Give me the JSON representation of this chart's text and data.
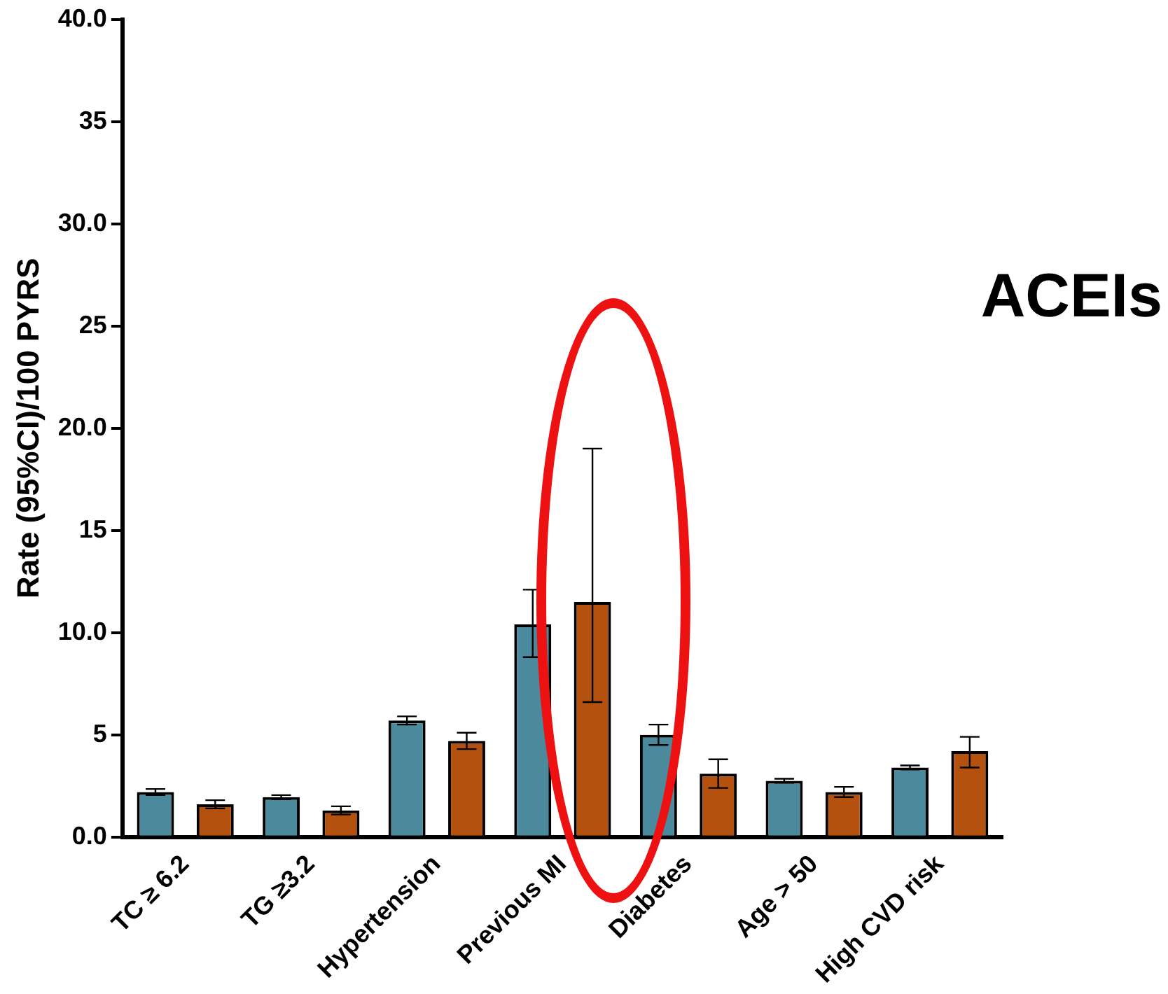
{
  "chart_data": {
    "type": "bar",
    "ylabel": "Rate (95%CI)/100 PYRS",
    "categories": [
      "TC ≥ 6.2",
      "TG ≥3.2",
      "Hypertension",
      "Previous MI",
      "Diabetes",
      "Age > 50",
      "High CVD risk"
    ],
    "series": [
      {
        "color": "#4a8a9c",
        "values": [
          2.2,
          1.95,
          5.7,
          10.4,
          5.0,
          2.75,
          3.4
        ],
        "errors": [
          0.15,
          0.1,
          0.2,
          [
            8.8,
            12.1
          ],
          [
            4.5,
            5.5
          ],
          0.1,
          0.1
        ]
      },
      {
        "color": "#b5510f",
        "values": [
          1.6,
          1.3,
          4.7,
          11.5,
          3.1,
          2.2,
          4.2
        ],
        "errors": [
          0.2,
          0.2,
          0.4,
          [
            6.6,
            19.0
          ],
          [
            2.4,
            3.8
          ],
          0.25,
          [
            3.4,
            4.9
          ]
        ]
      }
    ],
    "ylim": [
      0,
      40
    ],
    "yticks": [
      {
        "value": 0,
        "label": "0.0"
      },
      5,
      {
        "value": 10,
        "label": "10.0"
      },
      15,
      {
        "value": 20,
        "label": "20.0"
      },
      25,
      {
        "value": 30,
        "label": "30.0"
      },
      35,
      {
        "value": 40,
        "label": "40.0"
      }
    ],
    "annotations": [
      "ACEIs"
    ],
    "grid": false,
    "legend": false
  }
}
